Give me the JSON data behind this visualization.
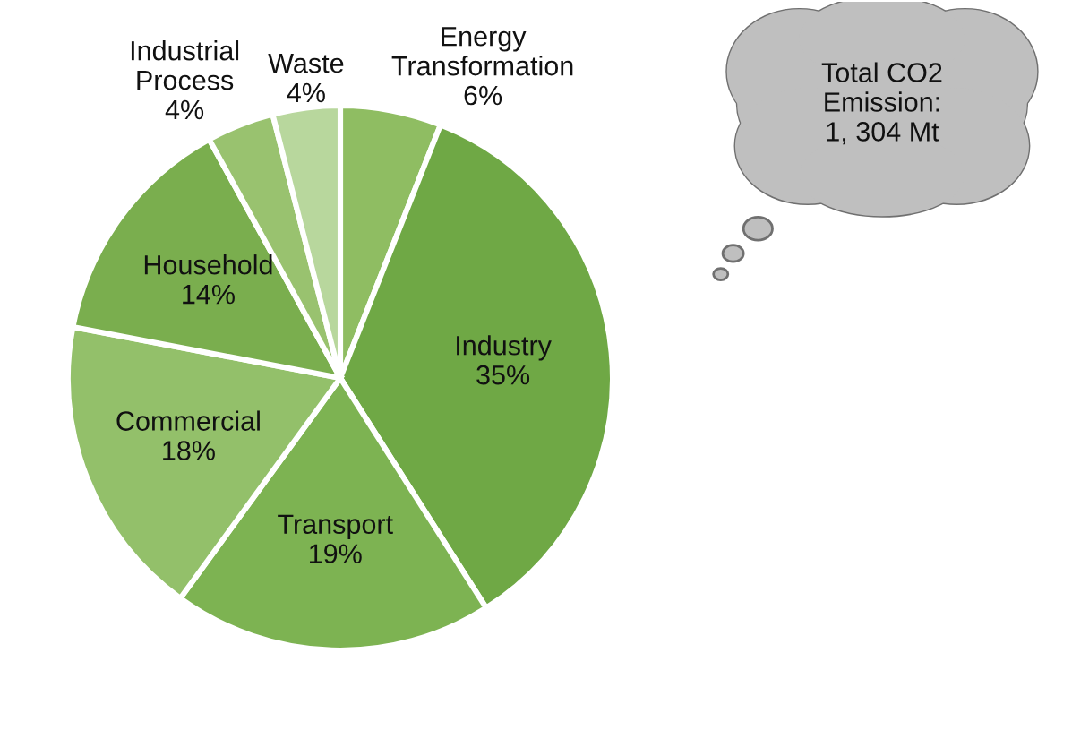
{
  "chart_data": {
    "type": "pie",
    "categories": [
      "Energy\nTransformation",
      "Industry",
      "Transport",
      "Commercial",
      "Household",
      "Industrial\nProcess",
      "Waste"
    ],
    "values": [
      6,
      35,
      19,
      18,
      14,
      4,
      4
    ],
    "colors": [
      "#8fbd62",
      "#6fa845",
      "#7db352",
      "#93c06a",
      "#7aae4e",
      "#99c26f",
      "#b8d79d"
    ],
    "value_labels": [
      "6%",
      "35%",
      "19%",
      "18%",
      "14%",
      "4%",
      "4%"
    ],
    "annotations": [
      "Total CO2\nEmission:\n1, 304 Mt"
    ]
  }
}
